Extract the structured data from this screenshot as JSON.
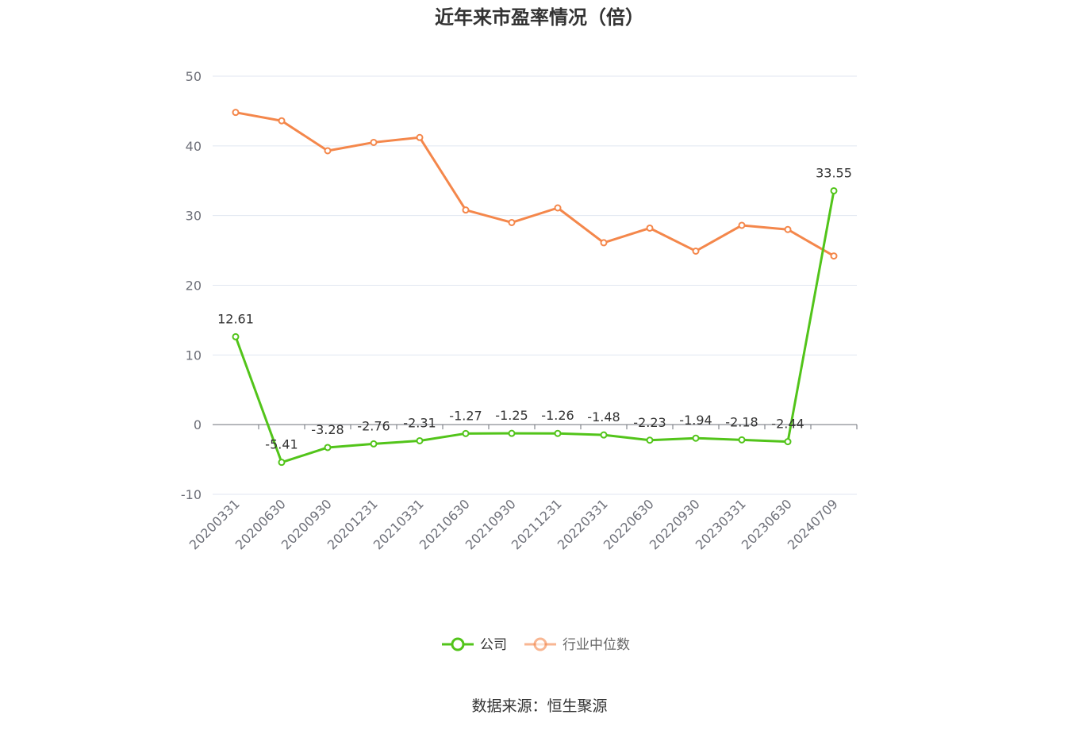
{
  "chart_data": {
    "type": "line",
    "title": "近年来市盈率情况（倍）",
    "categories": [
      "20200331",
      "20200630",
      "20200930",
      "20201231",
      "20210331",
      "20210630",
      "20210930",
      "20211231",
      "20220331",
      "20220630",
      "20220930",
      "20230331",
      "20230630",
      "20240709"
    ],
    "ylim": [
      -10,
      50
    ],
    "yticks": [
      -10,
      0,
      10,
      20,
      30,
      40,
      50
    ],
    "grid": true,
    "legend_position": "bottom-center",
    "series": [
      {
        "name": "公司",
        "color": "#52c41a",
        "values": [
          12.61,
          -5.41,
          -3.28,
          -2.76,
          -2.31,
          -1.27,
          -1.25,
          -1.26,
          -1.48,
          -2.23,
          -1.94,
          -2.18,
          -2.44,
          33.55
        ],
        "labels": [
          "12.61",
          "-5.41",
          "-3.28",
          "-2.76",
          "-2.31",
          "-1.27",
          "-1.25",
          "-1.26",
          "-1.48",
          "-2.23",
          "-1.94",
          "-2.18",
          "-2.44",
          "33.55"
        ]
      },
      {
        "name": "行业中位数",
        "color": "#f4874b",
        "values": [
          44.8,
          43.6,
          39.3,
          40.5,
          41.2,
          30.8,
          29.0,
          31.1,
          26.1,
          28.2,
          24.9,
          28.6,
          28.0,
          24.2
        ]
      }
    ],
    "source": "数据来源：恒生聚源"
  }
}
